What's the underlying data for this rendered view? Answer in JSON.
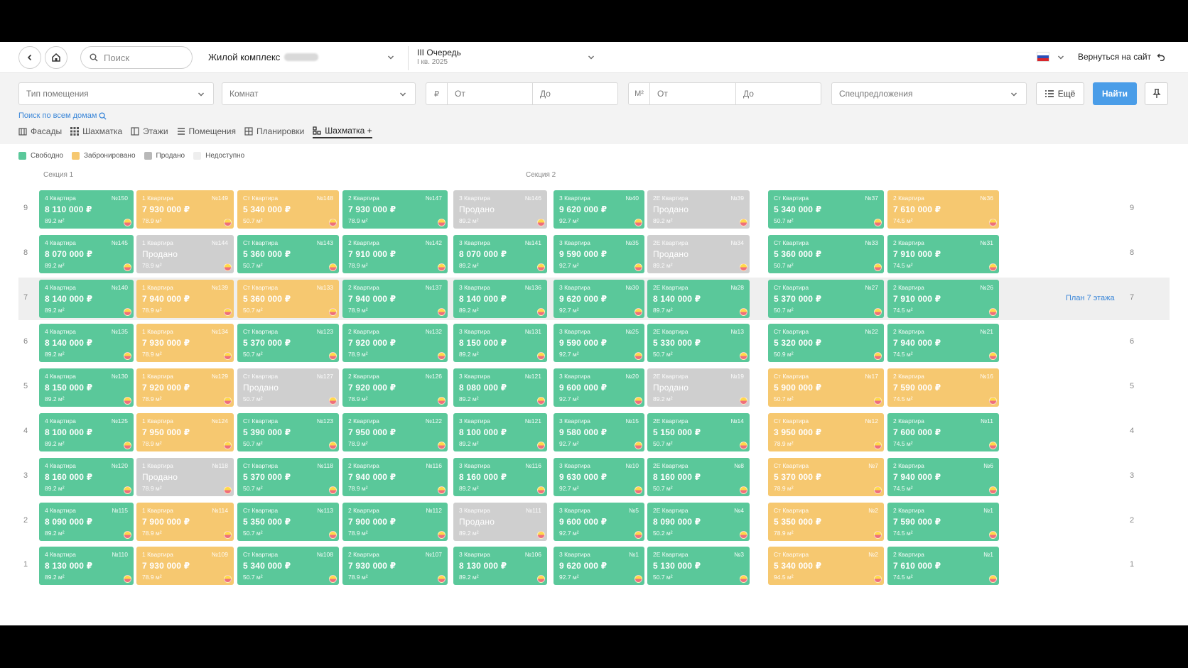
{
  "header": {
    "search_placeholder": "Поиск",
    "complex_label": "Жилой комплекс",
    "queue_title": "III Очередь",
    "queue_sub": "I кв. 2025",
    "back_to_site": "Вернуться на сайт"
  },
  "filters": {
    "type": "Тип помещения",
    "rooms": "Комнат",
    "price_unit": "₽",
    "price_from": "От",
    "price_to": "До",
    "area_unit": "М²",
    "area_from": "От",
    "area_to": "До",
    "special": "Спецпредложения",
    "more": "Ещё",
    "find": "Найти",
    "search_all": "Поиск по всем домам"
  },
  "tabs": [
    "Фасады",
    "Шахматка",
    "Этажи",
    "Помещения",
    "Планировки",
    "Шахматка +"
  ],
  "legend": [
    {
      "label": "Свободно",
      "color": "#5ac89a"
    },
    {
      "label": "Забронировано",
      "color": "#f6c870"
    },
    {
      "label": "Продано",
      "color": "#b8b8b8"
    },
    {
      "label": "Недоступно",
      "color": "#eeeeee"
    }
  ],
  "sections": [
    "Секция 1",
    "Секция 2"
  ],
  "plan_link": "План 7 этажа",
  "colors": {
    "free": "#5ac89a",
    "booked": "#f6c870",
    "sold": "#cfcfcf",
    "accent": "#4a9de8"
  },
  "floors": [
    {
      "floor": "9",
      "cells": [
        {
          "s": "free",
          "t": "4 Квартира",
          "n": "№150",
          "p": "8 110 000 ₽",
          "a": "89.2 м²"
        },
        {
          "s": "booked",
          "t": "1 Квартира",
          "n": "№149",
          "p": "7 930 000 ₽",
          "a": "78.9 м²"
        },
        {
          "s": "booked",
          "t": "Ст Квартира",
          "n": "№148",
          "p": "5 340 000 ₽",
          "a": "50.7 м²"
        },
        {
          "s": "free",
          "t": "2 Квартира",
          "n": "№147",
          "p": "7 930 000 ₽",
          "a": "78.9 м²"
        },
        {
          "s": "sold",
          "t": "3 Квартира",
          "n": "№146",
          "p": "Продано",
          "a": "89.2 м²"
        },
        {
          "s": "free",
          "t": "3 Квартира",
          "n": "№40",
          "p": "9 620 000 ₽",
          "a": "92.7 м²"
        },
        {
          "s": "sold",
          "t": "2Е Квартира",
          "n": "№39",
          "p": "Продано",
          "a": "89.2 м²"
        },
        {
          "s": "free",
          "t": "Ст Квартира",
          "n": "№37",
          "p": "5 340 000 ₽",
          "a": "50.7 м²"
        },
        {
          "s": "booked",
          "t": "2 Квартира",
          "n": "№36",
          "p": "7 610 000 ₽",
          "a": "74.5 м²"
        }
      ]
    },
    {
      "floor": "8",
      "cells": [
        {
          "s": "free",
          "t": "4 Квартира",
          "n": "№145",
          "p": "8 070 000 ₽",
          "a": "89.2 м²"
        },
        {
          "s": "sold",
          "t": "1 Квартира",
          "n": "№144",
          "p": "Продано",
          "a": "78.9 м²"
        },
        {
          "s": "free",
          "t": "Ст Квартира",
          "n": "№143",
          "p": "5 360 000 ₽",
          "a": "50.7 м²"
        },
        {
          "s": "free",
          "t": "2 Квартира",
          "n": "№142",
          "p": "7 910 000 ₽",
          "a": "78.9 м²"
        },
        {
          "s": "free",
          "t": "3 Квартира",
          "n": "№141",
          "p": "8 070 000 ₽",
          "a": "89.2 м²"
        },
        {
          "s": "free",
          "t": "3 Квартира",
          "n": "№35",
          "p": "9 590 000 ₽",
          "a": "92.7 м²"
        },
        {
          "s": "sold",
          "t": "2Е Квартира",
          "n": "№34",
          "p": "Продано",
          "a": "89.2 м²"
        },
        {
          "s": "free",
          "t": "Ст Квартира",
          "n": "№33",
          "p": "5 360 000 ₽",
          "a": "50.7 м²"
        },
        {
          "s": "free",
          "t": "2 Квартира",
          "n": "№31",
          "p": "7 910 000 ₽",
          "a": "74.5 м²"
        }
      ]
    },
    {
      "floor": "7",
      "cells": [
        {
          "s": "free",
          "t": "4 Квартира",
          "n": "№140",
          "p": "8 140 000 ₽",
          "a": "89.2 м²"
        },
        {
          "s": "booked",
          "t": "1 Квартира",
          "n": "№139",
          "p": "7 940 000 ₽",
          "a": "78.9 м²"
        },
        {
          "s": "booked",
          "t": "Ст Квартира",
          "n": "№133",
          "p": "5 360 000 ₽",
          "a": "50.7 м²"
        },
        {
          "s": "free",
          "t": "2 Квартира",
          "n": "№137",
          "p": "7 940 000 ₽",
          "a": "78.9 м²"
        },
        {
          "s": "free",
          "t": "3 Квартира",
          "n": "№136",
          "p": "8 140 000 ₽",
          "a": "89.2 м²"
        },
        {
          "s": "free",
          "t": "3 Квартира",
          "n": "№30",
          "p": "9 620 000 ₽",
          "a": "92.7 м²"
        },
        {
          "s": "free",
          "t": "2Е Квартира",
          "n": "№28",
          "p": "8 140 000 ₽",
          "a": "89.7 м²"
        },
        {
          "s": "free",
          "t": "Ст Квартира",
          "n": "№27",
          "p": "5 370 000 ₽",
          "a": "50.7 м²"
        },
        {
          "s": "free",
          "t": "2 Квартира",
          "n": "№26",
          "p": "7 910 000 ₽",
          "a": "74.5 м²"
        }
      ]
    },
    {
      "floor": "6",
      "cells": [
        {
          "s": "free",
          "t": "4 Квартира",
          "n": "№135",
          "p": "8 140 000 ₽",
          "a": "89.2 м²"
        },
        {
          "s": "booked",
          "t": "1 Квартира",
          "n": "№134",
          "p": "7 930 000 ₽",
          "a": "78.9 м²"
        },
        {
          "s": "free",
          "t": "Ст Квартира",
          "n": "№123",
          "p": "5 370 000 ₽",
          "a": "50.7 м²"
        },
        {
          "s": "free",
          "t": "2 Квартира",
          "n": "№132",
          "p": "7 920 000 ₽",
          "a": "78.9 м²"
        },
        {
          "s": "free",
          "t": "3 Квартира",
          "n": "№131",
          "p": "8 150 000 ₽",
          "a": "89.2 м²"
        },
        {
          "s": "free",
          "t": "3 Квартира",
          "n": "№25",
          "p": "9 590 000 ₽",
          "a": "92.7 м²"
        },
        {
          "s": "free",
          "t": "2Е Квартира",
          "n": "№13",
          "p": "5 330 000 ₽",
          "a": "50.7 м²"
        },
        {
          "s": "free",
          "t": "Ст Квартира",
          "n": "№22",
          "p": "5 320 000 ₽",
          "a": "50.9 м²"
        },
        {
          "s": "free",
          "t": "2 Квартира",
          "n": "№21",
          "p": "7 940 000 ₽",
          "a": "74.5 м²"
        }
      ]
    },
    {
      "floor": "5",
      "cells": [
        {
          "s": "free",
          "t": "4 Квартира",
          "n": "№130",
          "p": "8 150 000 ₽",
          "a": "89.2 м²"
        },
        {
          "s": "booked",
          "t": "1 Квартира",
          "n": "№129",
          "p": "7 920 000 ₽",
          "a": "78.9 м²"
        },
        {
          "s": "sold",
          "t": "Ст Квартира",
          "n": "№127",
          "p": "Продано",
          "a": "50.7 м²"
        },
        {
          "s": "free",
          "t": "2 Квартира",
          "n": "№126",
          "p": "7 920 000 ₽",
          "a": "78.9 м²"
        },
        {
          "s": "free",
          "t": "3 Квартира",
          "n": "№121",
          "p": "8 080 000 ₽",
          "a": "89.2 м²"
        },
        {
          "s": "free",
          "t": "3 Квартира",
          "n": "№20",
          "p": "9 600 000 ₽",
          "a": "92.7 м²"
        },
        {
          "s": "sold",
          "t": "2Е Квартира",
          "n": "№19",
          "p": "Продано",
          "a": "89.2 м²"
        },
        {
          "s": "booked",
          "t": "Ст Квартира",
          "n": "№17",
          "p": "5 900 000 ₽",
          "a": "50.7 м²"
        },
        {
          "s": "booked",
          "t": "2 Квартира",
          "n": "№16",
          "p": "7 590 000 ₽",
          "a": "74.5 м²"
        }
      ]
    },
    {
      "floor": "4",
      "cells": [
        {
          "s": "free",
          "t": "4 Квартира",
          "n": "№125",
          "p": "8 100 000 ₽",
          "a": "89.2 м²"
        },
        {
          "s": "booked",
          "t": "1 Квартира",
          "n": "№124",
          "p": "7 950 000 ₽",
          "a": "78.9 м²"
        },
        {
          "s": "free",
          "t": "Ст Квартира",
          "n": "№123",
          "p": "5 390 000 ₽",
          "a": "50.7 м²"
        },
        {
          "s": "free",
          "t": "2 Квартира",
          "n": "№122",
          "p": "7 950 000 ₽",
          "a": "78.9 м²"
        },
        {
          "s": "free",
          "t": "3 Квартира",
          "n": "№121",
          "p": "8 100 000 ₽",
          "a": "89.2 м²"
        },
        {
          "s": "free",
          "t": "3 Квартира",
          "n": "№15",
          "p": "9 580 000 ₽",
          "a": "92.7 м²"
        },
        {
          "s": "free",
          "t": "2Е Квартира",
          "n": "№14",
          "p": "5 150 000 ₽",
          "a": "50.7 м²"
        },
        {
          "s": "booked",
          "t": "Ст Квартира",
          "n": "№12",
          "p": "3 950 000 ₽",
          "a": "78.9 м²"
        },
        {
          "s": "free",
          "t": "2 Квартира",
          "n": "№11",
          "p": "7 600 000 ₽",
          "a": "74.5 м²"
        }
      ]
    },
    {
      "floor": "3",
      "cells": [
        {
          "s": "free",
          "t": "4 Квартира",
          "n": "№120",
          "p": "8 160 000 ₽",
          "a": "89.2 м²"
        },
        {
          "s": "sold",
          "t": "1 Квартира",
          "n": "№118",
          "p": "Продано",
          "a": "78.9 м²"
        },
        {
          "s": "free",
          "t": "Ст Квартира",
          "n": "№118",
          "p": "5 370 000 ₽",
          "a": "50.7 м²"
        },
        {
          "s": "free",
          "t": "2 Квартира",
          "n": "№116",
          "p": "7 940 000 ₽",
          "a": "78.9 м²"
        },
        {
          "s": "free",
          "t": "3 Квартира",
          "n": "№116",
          "p": "8 160 000 ₽",
          "a": "89.2 м²"
        },
        {
          "s": "free",
          "t": "3 Квартира",
          "n": "№10",
          "p": "9 630 000 ₽",
          "a": "92.7 м²"
        },
        {
          "s": "free",
          "t": "2Е Квартира",
          "n": "№8",
          "p": "8 160 000 ₽",
          "a": "50.7 м²"
        },
        {
          "s": "booked",
          "t": "Ст Квартира",
          "n": "№7",
          "p": "5 370 000 ₽",
          "a": "78.9 м²"
        },
        {
          "s": "free",
          "t": "2 Квартира",
          "n": "№6",
          "p": "7 940 000 ₽",
          "a": "74.5 м²"
        }
      ]
    },
    {
      "floor": "2",
      "cells": [
        {
          "s": "free",
          "t": "4 Квартира",
          "n": "№115",
          "p": "8 090 000 ₽",
          "a": "89.2 м²"
        },
        {
          "s": "booked",
          "t": "1 Квартира",
          "n": "№114",
          "p": "7 900 000 ₽",
          "a": "78.9 м²"
        },
        {
          "s": "free",
          "t": "Ст Квартира",
          "n": "№113",
          "p": "5 350 000 ₽",
          "a": "50.7 м²"
        },
        {
          "s": "free",
          "t": "2 Квартира",
          "n": "№112",
          "p": "7 900 000 ₽",
          "a": "78.9 м²"
        },
        {
          "s": "sold",
          "t": "3 Квартира",
          "n": "№111",
          "p": "Продано",
          "a": "89.2 м²"
        },
        {
          "s": "free",
          "t": "3 Квартира",
          "n": "№5",
          "p": "9 600 000 ₽",
          "a": "92.7 м²"
        },
        {
          "s": "free",
          "t": "2Е Квартира",
          "n": "№4",
          "p": "8 090 000 ₽",
          "a": "50.2 м²"
        },
        {
          "s": "booked",
          "t": "Ст Квартира",
          "n": "№2",
          "p": "5 350 000 ₽",
          "a": "78.9 м²"
        },
        {
          "s": "free",
          "t": "2 Квартира",
          "n": "№1",
          "p": "7 590 000 ₽",
          "a": "74.5 м²"
        }
      ]
    },
    {
      "floor": "1",
      "cells": [
        {
          "s": "free",
          "t": "4 Квартира",
          "n": "№110",
          "p": "8 130 000 ₽",
          "a": "89.2 м²"
        },
        {
          "s": "booked",
          "t": "1 Квартира",
          "n": "№109",
          "p": "7 930 000 ₽",
          "a": "78.9 м²"
        },
        {
          "s": "free",
          "t": "Ст Квартира",
          "n": "№108",
          "p": "5 340 000 ₽",
          "a": "50.7 м²"
        },
        {
          "s": "free",
          "t": "2 Квартира",
          "n": "№107",
          "p": "7 930 000 ₽",
          "a": "78.9 м²"
        },
        {
          "s": "free",
          "t": "3 Квартира",
          "n": "№106",
          "p": "8 130 000 ₽",
          "a": "89.2 м²"
        },
        {
          "s": "free",
          "t": "3 Квартира",
          "n": "№1",
          "p": "9 620 000 ₽",
          "a": "92.7 м²"
        },
        {
          "s": "free",
          "t": "2Е Квартира",
          "n": "№3",
          "p": "5 130 000 ₽",
          "a": "50.7 м²"
        },
        {
          "s": "booked",
          "t": "Ст Квартира",
          "n": "№2",
          "p": "5 340 000 ₽",
          "a": "94.5 м²"
        },
        {
          "s": "free",
          "t": "2 Квартира",
          "n": "№1",
          "p": "7 610 000 ₽",
          "a": "74.5 м²"
        }
      ]
    }
  ]
}
